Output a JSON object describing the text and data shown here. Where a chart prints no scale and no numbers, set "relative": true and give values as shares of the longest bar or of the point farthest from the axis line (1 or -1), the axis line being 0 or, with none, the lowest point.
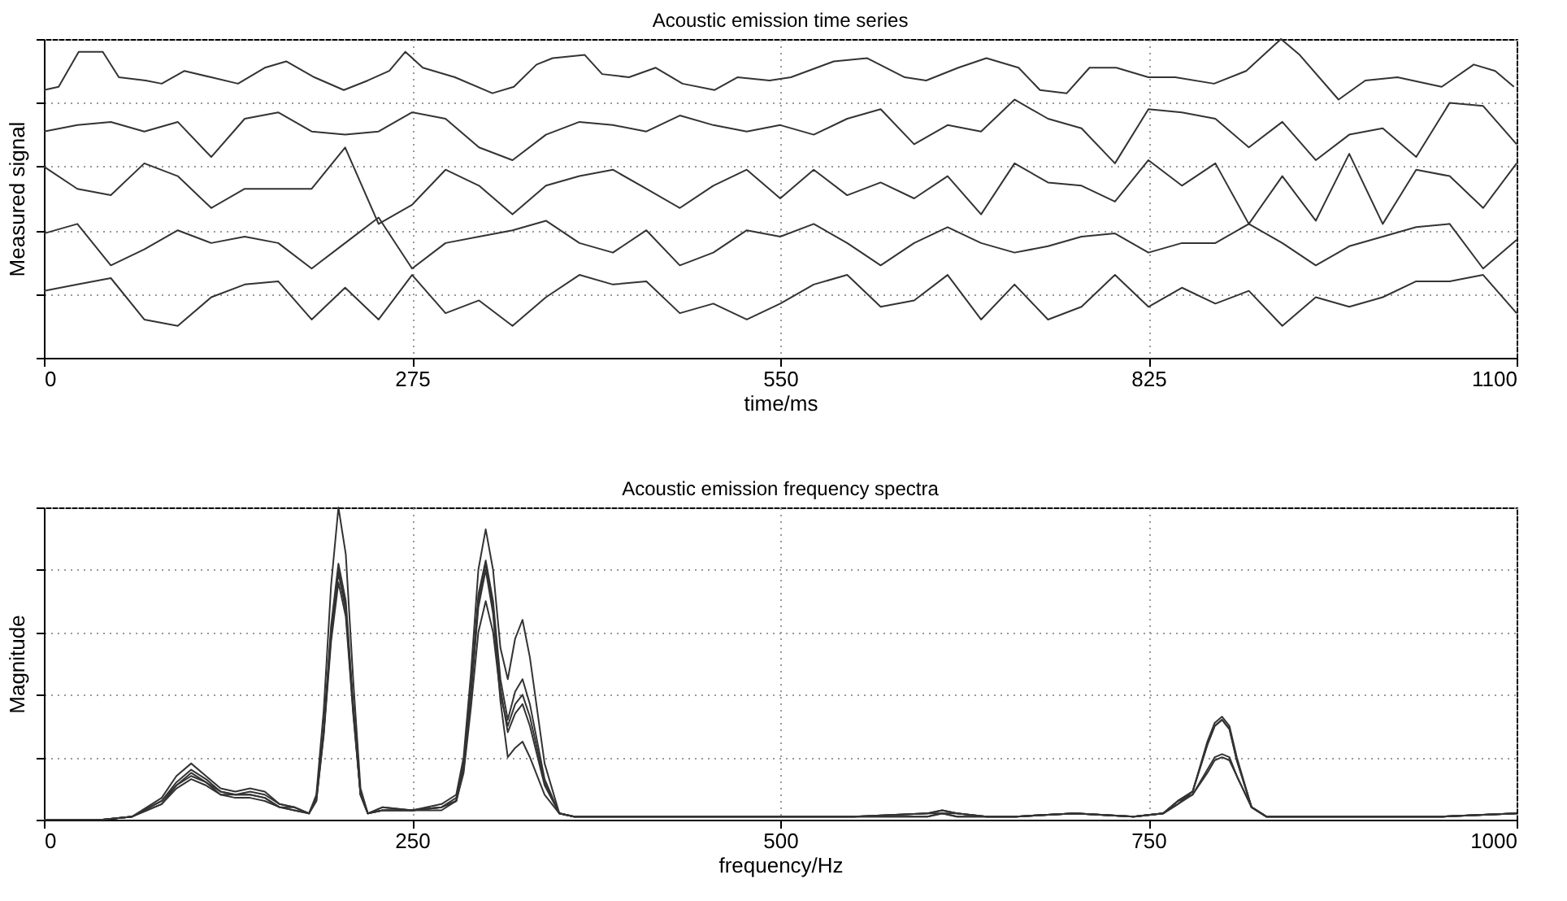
{
  "chart_data": [
    {
      "type": "line",
      "title": "Acoustic emission time series",
      "xlabel": "time/ms",
      "ylabel": "Measured signal",
      "relative": true,
      "xlim": [
        0,
        1100
      ],
      "xticks": [
        0,
        275,
        550,
        825,
        1100
      ],
      "grid": true,
      "x": [
        0,
        25,
        50,
        75,
        100,
        125,
        150,
        175,
        200,
        225,
        250,
        275,
        300,
        325,
        350,
        375,
        400,
        425,
        450,
        475,
        500,
        525,
        550,
        575,
        600,
        625,
        650,
        675,
        700,
        725,
        750,
        775,
        800,
        825,
        850,
        875,
        900,
        925,
        950,
        975,
        1000,
        1025,
        1050,
        1075,
        1100
      ],
      "series": [
        {
          "color": "#333333",
          "x": [
            0,
            11,
            26,
            44,
            56,
            76,
            88,
            105,
            125,
            145,
            165,
            181,
            202,
            224,
            242,
            258,
            270,
            283,
            307,
            335,
            351,
            368,
            380,
            404,
            417,
            437,
            457,
            477,
            501,
            518,
            542,
            558,
            590,
            615,
            643,
            659,
            683,
            704,
            728,
            744,
            764,
            781,
            801,
            825,
            845,
            874,
            898,
            924,
            938,
            967,
            987,
            1011,
            1044,
            1068,
            1084,
            1098
          ],
          "values": [
            0.84,
            0.85,
            0.96,
            0.96,
            0.88,
            0.87,
            0.86,
            0.9,
            0.88,
            0.86,
            0.91,
            0.93,
            0.88,
            0.84,
            0.87,
            0.9,
            0.96,
            0.91,
            0.88,
            0.83,
            0.85,
            0.92,
            0.94,
            0.95,
            0.89,
            0.88,
            0.91,
            0.86,
            0.84,
            0.88,
            0.87,
            0.88,
            0.93,
            0.94,
            0.88,
            0.87,
            0.91,
            0.94,
            0.91,
            0.84,
            0.83,
            0.91,
            0.91,
            0.88,
            0.88,
            0.86,
            0.9,
            1.0,
            0.95,
            0.81,
            0.87,
            0.88,
            0.85,
            0.92,
            0.9,
            0.85
          ]
        },
        {
          "color": "#333333",
          "values": [
            0.71,
            0.73,
            0.74,
            0.71,
            0.74,
            0.63,
            0.75,
            0.77,
            0.71,
            0.7,
            0.71,
            0.77,
            0.75,
            0.66,
            0.62,
            0.7,
            0.74,
            0.73,
            0.71,
            0.76,
            0.73,
            0.71,
            0.73,
            0.7,
            0.75,
            0.78,
            0.67,
            0.73,
            0.71,
            0.81,
            0.75,
            0.72,
            0.61,
            0.78,
            0.77,
            0.75,
            0.66,
            0.74,
            0.62,
            0.7,
            0.72,
            0.63,
            0.8,
            0.79,
            0.67
          ]
        },
        {
          "color": "#333333",
          "values": [
            0.6,
            0.53,
            0.51,
            0.61,
            0.57,
            0.47,
            0.53,
            0.53,
            0.53,
            0.66,
            0.42,
            0.48,
            0.59,
            0.54,
            0.45,
            0.54,
            0.57,
            0.59,
            0.53,
            0.47,
            0.54,
            0.59,
            0.5,
            0.59,
            0.51,
            0.55,
            0.5,
            0.57,
            0.45,
            0.61,
            0.55,
            0.54,
            0.49,
            0.62,
            0.54,
            0.61,
            0.42,
            0.57,
            0.43,
            0.64,
            0.42,
            0.59,
            0.57,
            0.47,
            0.61
          ]
        },
        {
          "color": "#333333",
          "values": [
            0.39,
            0.42,
            0.29,
            0.34,
            0.4,
            0.36,
            0.38,
            0.36,
            0.28,
            0.36,
            0.44,
            0.28,
            0.36,
            0.38,
            0.4,
            0.43,
            0.36,
            0.33,
            0.4,
            0.29,
            0.33,
            0.4,
            0.38,
            0.42,
            0.36,
            0.29,
            0.36,
            0.41,
            0.36,
            0.33,
            0.35,
            0.38,
            0.39,
            0.33,
            0.36,
            0.36,
            0.42,
            0.36,
            0.29,
            0.35,
            0.38,
            0.41,
            0.42,
            0.28,
            0.37
          ]
        },
        {
          "color": "#333333",
          "values": [
            0.21,
            0.23,
            0.25,
            0.12,
            0.1,
            0.19,
            0.23,
            0.24,
            0.12,
            0.22,
            0.12,
            0.26,
            0.14,
            0.18,
            0.1,
            0.19,
            0.26,
            0.23,
            0.24,
            0.14,
            0.17,
            0.12,
            0.17,
            0.23,
            0.26,
            0.16,
            0.18,
            0.26,
            0.12,
            0.23,
            0.12,
            0.16,
            0.26,
            0.16,
            0.22,
            0.17,
            0.21,
            0.1,
            0.19,
            0.16,
            0.19,
            0.24,
            0.24,
            0.26,
            0.14
          ]
        }
      ]
    },
    {
      "type": "line",
      "title": "Acoustic emission frequency spectra",
      "xlabel": "frequency/Hz",
      "ylabel": "Magnitude",
      "relative": true,
      "xlim": [
        0,
        1000
      ],
      "xticks": [
        0,
        250,
        500,
        750,
        1000
      ],
      "grid": true,
      "x": [
        0,
        40,
        60,
        80,
        90,
        100,
        110,
        120,
        130,
        140,
        150,
        160,
        170,
        180,
        185,
        190,
        195,
        200,
        205,
        210,
        215,
        220,
        230,
        250,
        270,
        280,
        285,
        290,
        295,
        300,
        305,
        310,
        315,
        320,
        325,
        330,
        340,
        350,
        360,
        400,
        450,
        500,
        550,
        600,
        610,
        620,
        640,
        660,
        700,
        740,
        760,
        770,
        780,
        790,
        795,
        800,
        805,
        810,
        820,
        830,
        850,
        900,
        950,
        1000
      ],
      "series": [
        {
          "color": "#333333",
          "values": [
            0,
            0,
            0.01,
            0.07,
            0.14,
            0.18,
            0.14,
            0.1,
            0.09,
            0.1,
            0.09,
            0.05,
            0.04,
            0.02,
            0.08,
            0.35,
            0.75,
            1.0,
            0.85,
            0.45,
            0.1,
            0.02,
            0.04,
            0.03,
            0.05,
            0.08,
            0.2,
            0.47,
            0.8,
            0.93,
            0.8,
            0.55,
            0.45,
            0.58,
            0.64,
            0.52,
            0.18,
            0.02,
            0.01,
            0.01,
            0.01,
            0.01,
            0.01,
            0.02,
            0.03,
            0.02,
            0.01,
            0.01,
            0.02,
            0.01,
            0.02,
            0.06,
            0.09,
            0.25,
            0.31,
            0.33,
            0.3,
            0.2,
            0.04,
            0.01,
            0.01,
            0.01,
            0.01,
            0.02
          ]
        },
        {
          "color": "#333333",
          "values": [
            0,
            0,
            0.01,
            0.06,
            0.12,
            0.16,
            0.13,
            0.09,
            0.08,
            0.09,
            0.08,
            0.05,
            0.04,
            0.02,
            0.07,
            0.29,
            0.62,
            0.82,
            0.7,
            0.37,
            0.08,
            0.02,
            0.04,
            0.03,
            0.04,
            0.07,
            0.18,
            0.42,
            0.72,
            0.83,
            0.7,
            0.45,
            0.32,
            0.41,
            0.45,
            0.37,
            0.13,
            0.02,
            0.01,
            0.01,
            0.01,
            0.01,
            0.01,
            0.02,
            0.03,
            0.02,
            0.01,
            0.01,
            0.02,
            0.01,
            0.02,
            0.06,
            0.09,
            0.24,
            0.3,
            0.32,
            0.29,
            0.19,
            0.04,
            0.01,
            0.01,
            0.01,
            0.01,
            0.02
          ]
        },
        {
          "color": "#333333",
          "values": [
            0,
            0,
            0.01,
            0.05,
            0.11,
            0.15,
            0.12,
            0.09,
            0.08,
            0.08,
            0.07,
            0.04,
            0.04,
            0.02,
            0.07,
            0.28,
            0.6,
            0.8,
            0.68,
            0.36,
            0.08,
            0.02,
            0.03,
            0.03,
            0.04,
            0.06,
            0.17,
            0.41,
            0.7,
            0.82,
            0.68,
            0.42,
            0.28,
            0.34,
            0.37,
            0.3,
            0.11,
            0.02,
            0.01,
            0.01,
            0.01,
            0.01,
            0.01,
            0.02,
            0.02,
            0.02,
            0.01,
            0.01,
            0.02,
            0.01,
            0.02,
            0.05,
            0.09,
            0.24,
            0.3,
            0.32,
            0.29,
            0.19,
            0.04,
            0.01,
            0.01,
            0.01,
            0.01,
            0.02
          ]
        },
        {
          "color": "#333333",
          "values": [
            0,
            0,
            0.01,
            0.05,
            0.1,
            0.13,
            0.11,
            0.08,
            0.07,
            0.07,
            0.06,
            0.04,
            0.03,
            0.02,
            0.06,
            0.27,
            0.57,
            0.76,
            0.65,
            0.34,
            0.08,
            0.02,
            0.03,
            0.03,
            0.03,
            0.06,
            0.15,
            0.36,
            0.6,
            0.7,
            0.6,
            0.4,
            0.3,
            0.37,
            0.4,
            0.33,
            0.12,
            0.02,
            0.01,
            0.01,
            0.01,
            0.01,
            0.01,
            0.01,
            0.02,
            0.01,
            0.01,
            0.01,
            0.02,
            0.01,
            0.02,
            0.06,
            0.08,
            0.16,
            0.2,
            0.21,
            0.2,
            0.14,
            0.04,
            0.01,
            0.01,
            0.01,
            0.01,
            0.02
          ]
        },
        {
          "color": "#333333",
          "values": [
            0,
            0,
            0.01,
            0.06,
            0.11,
            0.14,
            0.12,
            0.08,
            0.08,
            0.08,
            0.07,
            0.04,
            0.03,
            0.02,
            0.06,
            0.28,
            0.59,
            0.79,
            0.67,
            0.35,
            0.08,
            0.02,
            0.03,
            0.03,
            0.04,
            0.06,
            0.16,
            0.4,
            0.68,
            0.8,
            0.66,
            0.38,
            0.2,
            0.23,
            0.25,
            0.2,
            0.08,
            0.02,
            0.01,
            0.01,
            0.01,
            0.01,
            0.01,
            0.01,
            0.02,
            0.01,
            0.01,
            0.01,
            0.02,
            0.01,
            0.02,
            0.05,
            0.08,
            0.15,
            0.19,
            0.2,
            0.19,
            0.14,
            0.04,
            0.01,
            0.01,
            0.01,
            0.01,
            0.02
          ]
        }
      ]
    }
  ]
}
